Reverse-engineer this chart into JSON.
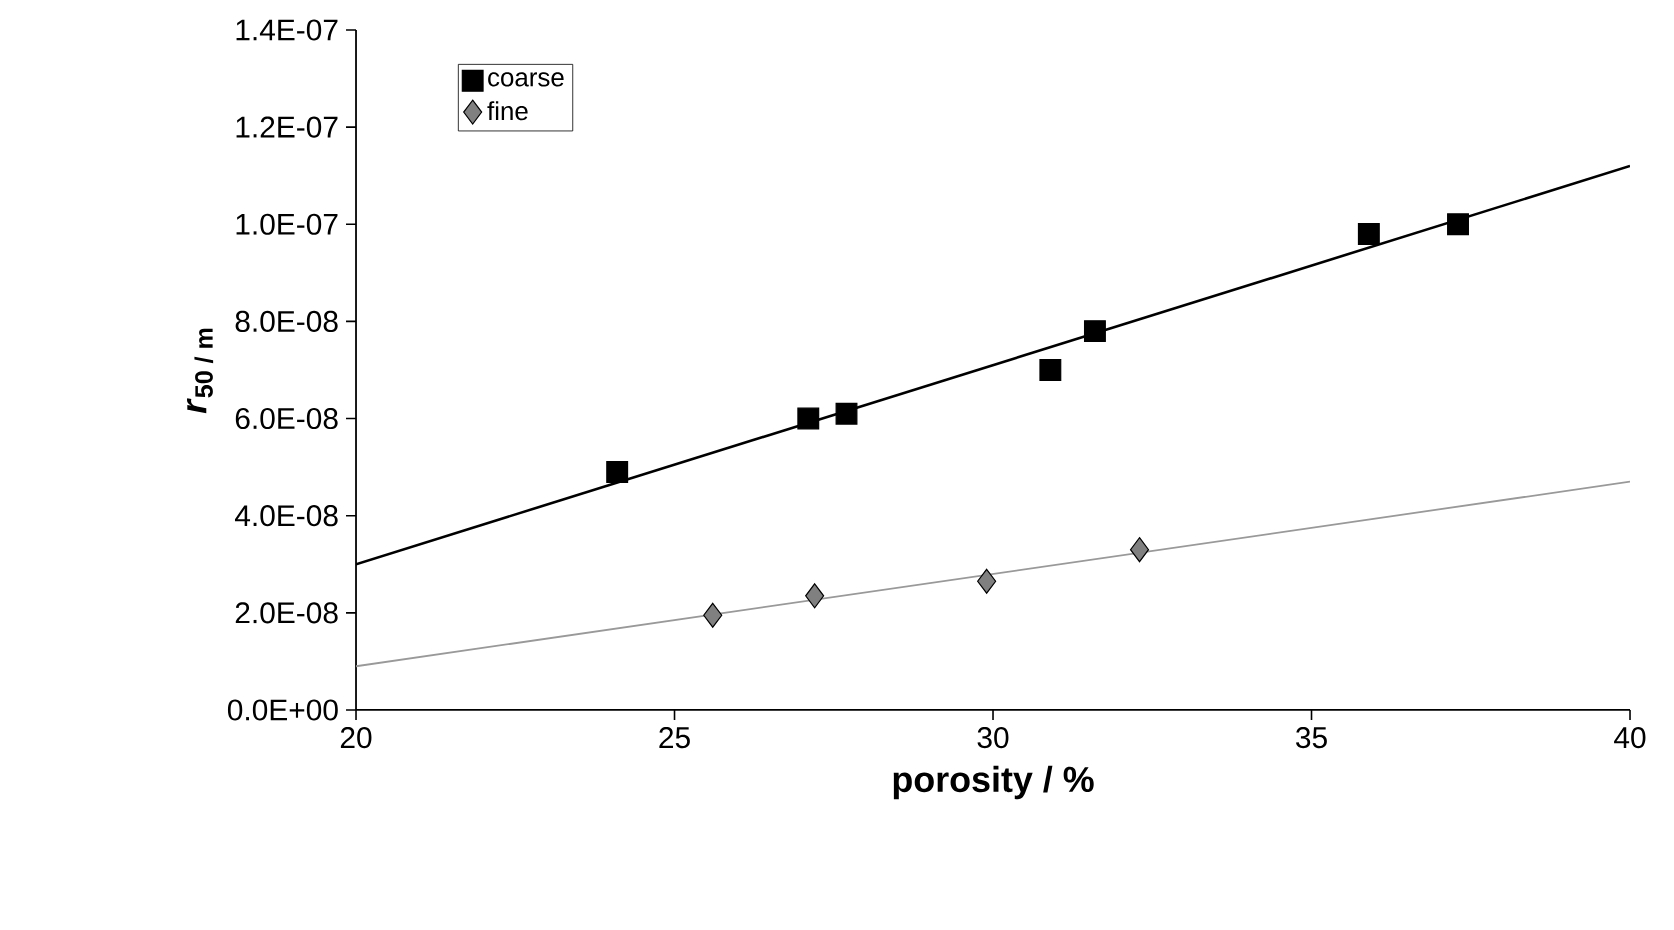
{
  "chart_data": {
    "type": "scatter",
    "xlabel": "porosity  / %",
    "ylabel": "*r*$_{50 / m}$",
    "xlim": [
      20,
      40
    ],
    "ylim": [
      0,
      1.4e-07
    ],
    "xticks": [
      20,
      25,
      30,
      35,
      40
    ],
    "yticks": [
      {
        "value": 0,
        "label": "0.0E+00"
      },
      {
        "value": 2e-08,
        "label": "2.0E-08"
      },
      {
        "value": 4e-08,
        "label": "4.0E-08"
      },
      {
        "value": 6e-08,
        "label": "6.0E-08"
      },
      {
        "value": 8e-08,
        "label": "8.0E-08"
      },
      {
        "value": 1e-07,
        "label": "1.0E-07"
      },
      {
        "value": 1.2e-07,
        "label": "1.2E-07"
      },
      {
        "value": 1.4e-07,
        "label": "1.4E-07"
      }
    ],
    "legend": "top left",
    "series": [
      {
        "name": "coarse",
        "marker": "square",
        "color": "#000000",
        "x": [
          24.1,
          27.1,
          27.7,
          30.9,
          31.6,
          35.9,
          37.3
        ],
        "values": [
          4.9e-08,
          6e-08,
          6.1e-08,
          7e-08,
          7.8e-08,
          9.8e-08,
          1e-07
        ]
      },
      {
        "name": "fine",
        "marker": "diamond",
        "color": "#808080",
        "x": [
          25.6,
          27.2,
          29.9,
          32.3
        ],
        "values": [
          1.95e-08,
          2.35e-08,
          2.65e-08,
          3.3e-08
        ]
      },
      {
        "type": "line",
        "marker": "none",
        "color": "#000000",
        "x": [
          20,
          40
        ],
        "values": [
          3e-08,
          1.12e-07
        ]
      },
      {
        "type": "line",
        "marker": "none",
        "color": "#999999",
        "x": [
          20,
          40
        ],
        "values": [
          9e-09,
          4.7e-08
        ]
      }
    ]
  }
}
